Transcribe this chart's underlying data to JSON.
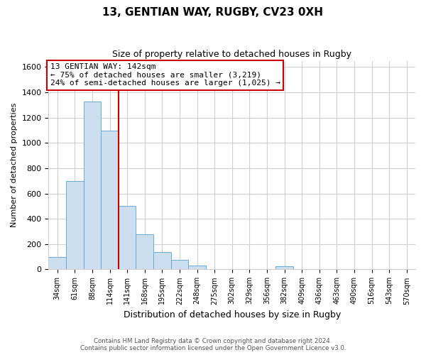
{
  "title": "13, GENTIAN WAY, RUGBY, CV23 0XH",
  "subtitle": "Size of property relative to detached houses in Rugby",
  "xlabel": "Distribution of detached houses by size in Rugby",
  "ylabel": "Number of detached properties",
  "bar_color": "#ccdff0",
  "bar_edge_color": "#6aaad4",
  "categories": [
    "34sqm",
    "61sqm",
    "88sqm",
    "114sqm",
    "141sqm",
    "168sqm",
    "195sqm",
    "222sqm",
    "248sqm",
    "275sqm",
    "302sqm",
    "329sqm",
    "356sqm",
    "382sqm",
    "409sqm",
    "436sqm",
    "463sqm",
    "490sqm",
    "516sqm",
    "543sqm",
    "570sqm"
  ],
  "values": [
    100,
    700,
    1330,
    1100,
    500,
    280,
    140,
    75,
    30,
    0,
    0,
    0,
    0,
    25,
    0,
    0,
    0,
    0,
    0,
    0,
    0
  ],
  "ylim": [
    0,
    1650
  ],
  "yticks": [
    0,
    200,
    400,
    600,
    800,
    1000,
    1200,
    1400,
    1600
  ],
  "annotation_title": "13 GENTIAN WAY: 142sqm",
  "annotation_line1": "← 75% of detached houses are smaller (3,219)",
  "annotation_line2": "24% of semi-detached houses are larger (1,025) →",
  "annotation_box_color": "#ffffff",
  "annotation_box_edge_color": "#cc0000",
  "vline_x_index": 3.5,
  "footnote1": "Contains HM Land Registry data © Crown copyright and database right 2024.",
  "footnote2": "Contains public sector information licensed under the Open Government Licence v3.0.",
  "background_color": "#ffffff",
  "grid_color": "#d0d0d0"
}
